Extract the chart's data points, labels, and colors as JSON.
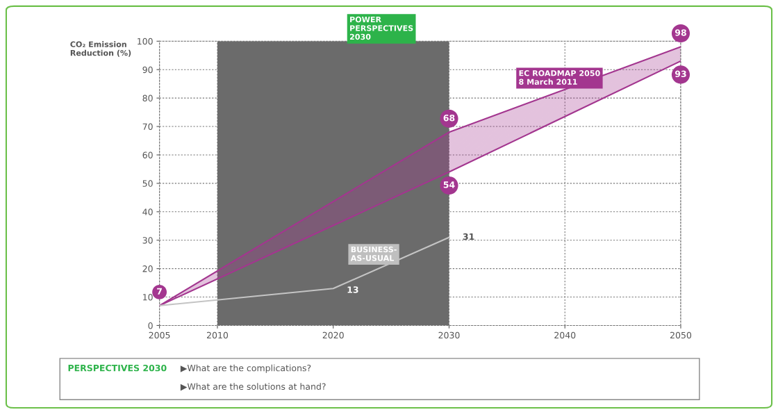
{
  "chart_data": {
    "type": "line",
    "ylabel": "CO₂ Emission\nReduction (%)",
    "x": [
      2005,
      2030,
      2050
    ],
    "xlim": [
      2005,
      2050
    ],
    "xticks": [
      2005,
      2010,
      2020,
      2030,
      2040,
      2050
    ],
    "ylim": [
      0,
      100
    ],
    "yticks": [
      0,
      10,
      20,
      30,
      40,
      50,
      60,
      70,
      80,
      90,
      100
    ],
    "grid": true,
    "marker": "none",
    "line_style": "solid",
    "series": [
      {
        "name": "EC ROADMAP 2050\n8 March 2011",
        "color": "#a3368f",
        "values": [
          7,
          68,
          98
        ],
        "lower": [
          7,
          54,
          93
        ],
        "upper": [
          7,
          68,
          98
        ],
        "value_labels": [
          "7",
          "68",
          "98"
        ]
      },
      {
        "color": "#a3368f",
        "values": [
          7,
          54,
          93
        ],
        "value_labels": [
          null,
          "54",
          "93"
        ]
      },
      {
        "name": "BUSINESS-\nAS-USUAL",
        "color": "#c4c4c4",
        "x": [
          2005,
          2020,
          2030
        ],
        "values": [
          7,
          13,
          31
        ],
        "value_labels": [
          null,
          "13",
          "31"
        ]
      }
    ],
    "bands": [
      {
        "axis": "x",
        "from": 2010,
        "to": 2030,
        "label": "POWER\nPERSPECTIVES\n2030",
        "color": "#6b6b6b"
      }
    ],
    "annotations": [
      "PERSPECTIVES 2030",
      "▶What are the complications?",
      "▶What are the solutions at hand?"
    ]
  }
}
